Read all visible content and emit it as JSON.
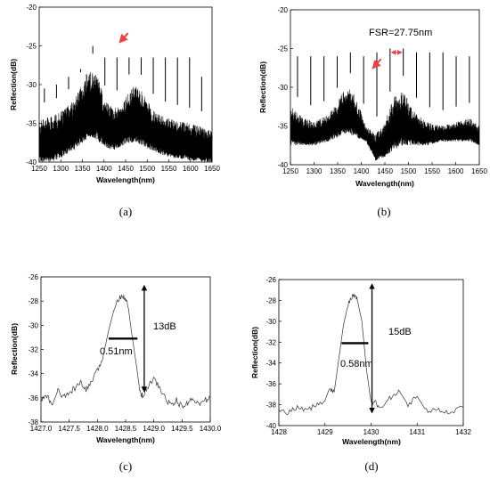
{
  "chart_data": [
    {
      "type": "line",
      "panel_label": "(a)",
      "xlabel": "Wavelength(nm)",
      "ylabel": "Reflection(dB)",
      "xlim": [
        1250,
        1650
      ],
      "ylim": [
        -40,
        -20
      ],
      "xticks": [
        "1250",
        "1300",
        "1350",
        "1400",
        "1450",
        "1500",
        "1550",
        "1600",
        "1650"
      ],
      "yticks": [
        "-20",
        "-25",
        "-30",
        "-35",
        "-40"
      ],
      "grid": false,
      "noise_envelope": {
        "x": [
          1250,
          1280,
          1300,
          1330,
          1350,
          1360,
          1375,
          1390,
          1400,
          1420,
          1440,
          1460,
          1475,
          1490,
          1510,
          1530,
          1560,
          1600,
          1630,
          1650
        ],
        "top": [
          -34.5,
          -34,
          -33.5,
          -32,
          -30,
          -28.5,
          -28,
          -29.5,
          -32,
          -33,
          -32.5,
          -30.5,
          -30,
          -31,
          -33,
          -34,
          -34.5,
          -35,
          -35.5,
          -36
        ],
        "bottom": [
          -40,
          -40,
          -39.5,
          -38.5,
          -37.5,
          -37,
          -37,
          -37.5,
          -38,
          -38.5,
          -38,
          -37.5,
          -37.5,
          -38,
          -38.5,
          -39,
          -39.5,
          -39.8,
          -40,
          -40
        ]
      },
      "peaks": [
        {
          "x": 1262,
          "y": -30.5
        },
        {
          "x": 1290,
          "y": -30
        },
        {
          "x": 1318,
          "y": -29
        },
        {
          "x": 1346,
          "y": -28
        },
        {
          "x": 1374,
          "y": -25
        },
        {
          "x": 1402,
          "y": -26.5
        },
        {
          "x": 1430,
          "y": -26.5
        },
        {
          "x": 1458,
          "y": -26.5
        },
        {
          "x": 1486,
          "y": -26.5
        },
        {
          "x": 1514,
          "y": -26.5
        },
        {
          "x": 1542,
          "y": -26.5
        },
        {
          "x": 1570,
          "y": -26.5
        },
        {
          "x": 1598,
          "y": -26.5
        },
        {
          "x": 1626,
          "y": -29
        }
      ],
      "arrow": {
        "x": 1437,
        "y": -24.5
      }
    },
    {
      "type": "line",
      "panel_label": "(b)",
      "xlabel": "Wavelength(nm)",
      "ylabel": "Reflection(dB)",
      "xlim": [
        1250,
        1650
      ],
      "ylim": [
        -40,
        -20
      ],
      "xticks": [
        "1250",
        "1300",
        "1350",
        "1400",
        "1450",
        "1500",
        "1550",
        "1600",
        "1650"
      ],
      "yticks": [
        "-20",
        "-25",
        "-30",
        "-35",
        "-40"
      ],
      "grid": false,
      "annotation": "FSR=27.75nm",
      "noise_envelope": {
        "x": [
          1250,
          1280,
          1300,
          1330,
          1350,
          1360,
          1375,
          1390,
          1410,
          1430,
          1450,
          1470,
          1490,
          1510,
          1540,
          1570,
          1600,
          1630,
          1650
        ],
        "top": [
          -32.5,
          -34,
          -34.5,
          -33.5,
          -32,
          -30.5,
          -30,
          -31.5,
          -35,
          -36,
          -34.5,
          -31,
          -30.5,
          -33,
          -34.5,
          -35,
          -34.5,
          -34,
          -35
        ],
        "bottom": [
          -37.5,
          -37.5,
          -37.5,
          -37,
          -36.5,
          -36,
          -36,
          -36.5,
          -37,
          -39.5,
          -39,
          -38,
          -37.5,
          -37.5,
          -37.5,
          -37,
          -37,
          -37,
          -37.5
        ]
      },
      "peaks": [
        {
          "x": 1265,
          "y": -26
        },
        {
          "x": 1293,
          "y": -26
        },
        {
          "x": 1321,
          "y": -26
        },
        {
          "x": 1349,
          "y": -26
        },
        {
          "x": 1377,
          "y": -25.5
        },
        {
          "x": 1405,
          "y": -26
        },
        {
          "x": 1433,
          "y": -25.5
        },
        {
          "x": 1461,
          "y": -25
        },
        {
          "x": 1489,
          "y": -25
        },
        {
          "x": 1517,
          "y": -25.5
        },
        {
          "x": 1545,
          "y": -25.5
        },
        {
          "x": 1573,
          "y": -25.5
        },
        {
          "x": 1601,
          "y": -26
        },
        {
          "x": 1629,
          "y": -26
        }
      ],
      "arrow": {
        "x": 1425,
        "y": -27.5
      },
      "fsr_marker": [
        1461,
        1489
      ]
    },
    {
      "type": "line",
      "panel_label": "(c)",
      "xlabel": "Wavelength(nm)",
      "ylabel": "Reflection(dB)",
      "xlim": [
        1427.0,
        1430.0
      ],
      "ylim": [
        -38,
        -26
      ],
      "xticks": [
        "1427.0",
        "1427.5",
        "1428.0",
        "1428.5",
        "1429.0",
        "1429.5",
        "1430.0"
      ],
      "yticks": [
        "-26",
        "-28",
        "-30",
        "-32",
        "-34",
        "-36",
        "-38"
      ],
      "grid": false,
      "series": [
        {
          "x": [
            1427.0,
            1427.1,
            1427.2,
            1427.3,
            1427.4,
            1427.5,
            1427.6,
            1427.7,
            1427.8,
            1427.9,
            1428.0,
            1428.1,
            1428.2,
            1428.3,
            1428.4,
            1428.45,
            1428.5,
            1428.55,
            1428.6,
            1428.7,
            1428.75,
            1428.8,
            1428.9,
            1429.0,
            1429.1,
            1429.2,
            1429.3,
            1429.4,
            1429.5,
            1429.6,
            1429.7,
            1429.8,
            1429.9,
            1430.0
          ],
          "y": [
            -36.2,
            -35.8,
            -36.6,
            -35.4,
            -36.0,
            -35.6,
            -35.2,
            -34.8,
            -35.4,
            -34.6,
            -33.8,
            -32.6,
            -30.4,
            -28.6,
            -27.6,
            -27.5,
            -27.8,
            -28.6,
            -30.4,
            -33.6,
            -35.4,
            -35.8,
            -35.0,
            -34.4,
            -35.2,
            -36.0,
            -36.6,
            -36.2,
            -36.8,
            -36.4,
            -36.0,
            -36.6,
            -36.2,
            -36.0
          ]
        }
      ],
      "fwhm_label": "0.51nm",
      "depth_label": "13dB",
      "fwhm": {
        "x1": 1428.2,
        "x2": 1428.71,
        "y": -31.1
      },
      "depth_arrow": {
        "x": 1428.83,
        "y_top": -26.6,
        "y_bottom": -35.6
      }
    },
    {
      "type": "line",
      "panel_label": "(d)",
      "xlabel": "Wavelength(nm)",
      "ylabel": "Reflection(dB)",
      "xlim": [
        1428,
        1432
      ],
      "ylim": [
        -40,
        -26
      ],
      "xticks": [
        "1428",
        "1429",
        "1430",
        "1431",
        "1432"
      ],
      "yticks": [
        "-26",
        "-28",
        "-30",
        "-32",
        "-34",
        "-36",
        "-38",
        "-40"
      ],
      "grid": false,
      "series": [
        {
          "x": [
            1428.0,
            1428.2,
            1428.4,
            1428.6,
            1428.8,
            1429.0,
            1429.1,
            1429.2,
            1429.3,
            1429.4,
            1429.5,
            1429.6,
            1429.65,
            1429.7,
            1429.8,
            1429.9,
            1430.0,
            1430.1,
            1430.2,
            1430.4,
            1430.6,
            1430.8,
            1431.0,
            1431.2,
            1431.4,
            1431.6,
            1431.8,
            1432.0
          ],
          "y": [
            -38.4,
            -38.8,
            -38.2,
            -38.6,
            -38.0,
            -37.6,
            -36.4,
            -36.8,
            -33.6,
            -30.4,
            -28.4,
            -27.6,
            -27.6,
            -27.9,
            -30.0,
            -34.6,
            -37.8,
            -37.8,
            -38.4,
            -37.4,
            -36.6,
            -38.0,
            -37.2,
            -38.6,
            -38.4,
            -38.8,
            -38.6,
            -38.2
          ]
        }
      ],
      "fwhm_label": "0.58nm",
      "depth_label": "15dB",
      "fwhm": {
        "x1": 1429.36,
        "x2": 1429.94,
        "y": -32.1
      },
      "depth_arrow": {
        "x": 1430.02,
        "y_top": -26.3,
        "y_bottom": -38.9
      }
    }
  ]
}
